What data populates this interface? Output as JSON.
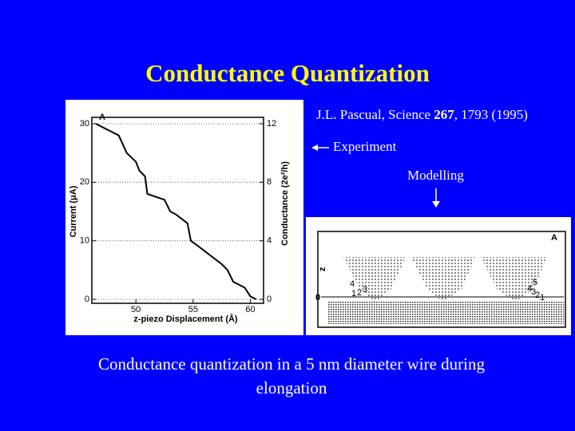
{
  "title": "Conductance Quantization",
  "reference": {
    "prefix": "J.L. Pascual, Science ",
    "volume": "267",
    "suffix": ", 1793 (1995)"
  },
  "labels": {
    "experiment": "Experiment",
    "modelling": "Modelling"
  },
  "caption": [
    "Conductance quantization in a 5 nm diameter wire during",
    "elongation"
  ],
  "simulation_panel": {
    "panel_label": "A",
    "axis_label": "z",
    "zero_label": "0",
    "left_numbers": [
      "4",
      "1",
      "2",
      "3"
    ],
    "right_numbers": [
      "5",
      "4",
      "3",
      "2",
      "1"
    ]
  },
  "chart_data": {
    "type": "line",
    "panel_label": "A",
    "x_label": "z-piezo Displacement (Å)",
    "y_label": "Current (μA)",
    "y2_label": "Conductance (2e²/h)",
    "x": [
      46.5,
      47.5,
      48.5,
      49.2,
      50,
      50.3,
      50.8,
      51,
      52.5,
      53,
      53.5,
      54.5,
      54.8,
      55.5,
      56.5,
      57.5,
      58,
      58.5,
      59.5,
      60,
      60.5
    ],
    "values": [
      30,
      29,
      28,
      25,
      23.5,
      22,
      21,
      18,
      17,
      15,
      14.5,
      13,
      10,
      9,
      7.5,
      6,
      5,
      3,
      2,
      0.5,
      0
    ],
    "color": "#000000",
    "xlim": [
      46.5,
      60.8
    ],
    "xticks": [
      50,
      55,
      60
    ],
    "ylim": [
      0,
      30
    ],
    "yticks": [
      0,
      10,
      20,
      30
    ],
    "y2lim": [
      0,
      12
    ],
    "y2ticks": [
      0,
      4,
      8,
      12
    ],
    "grid": true
  }
}
